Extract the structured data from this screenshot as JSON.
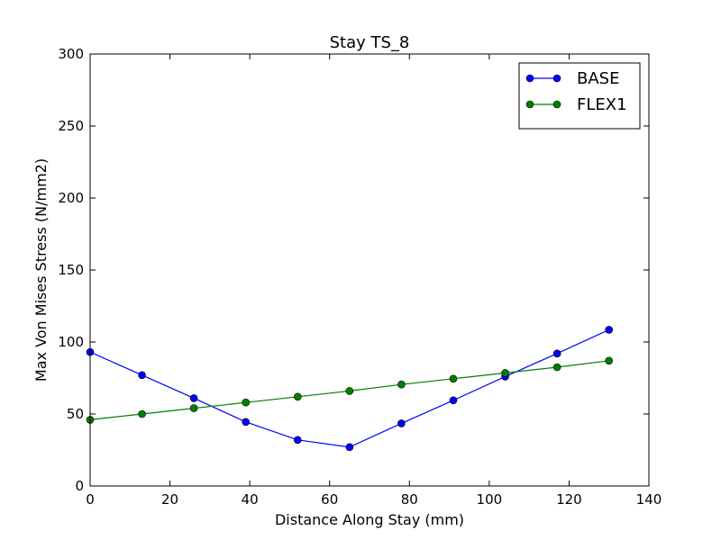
{
  "chart_data": {
    "type": "line",
    "title": "Stay TS_8",
    "xlabel": "Distance Along Stay (mm)",
    "ylabel": "Max Von Mises Stress (N/mm2)",
    "xlim": [
      0,
      140
    ],
    "ylim": [
      0,
      300
    ],
    "xticks": [
      0,
      20,
      40,
      60,
      80,
      100,
      120,
      140
    ],
    "yticks": [
      0,
      50,
      100,
      150,
      200,
      250,
      300
    ],
    "grid": false,
    "legend_position": "top-right",
    "x": [
      0,
      13,
      26,
      39,
      52,
      65,
      78,
      91,
      104,
      117,
      130
    ],
    "series": [
      {
        "name": "BASE",
        "color": "#0000ff",
        "marker": "circle",
        "values": [
          93,
          77,
          61,
          44.5,
          32,
          27,
          43.5,
          59.5,
          76,
          92,
          108.5
        ]
      },
      {
        "name": "FLEX1",
        "color": "#008000",
        "marker": "circle",
        "values": [
          46,
          50,
          54,
          58,
          62,
          66,
          70.5,
          74.5,
          78.5,
          82.5,
          87
        ]
      }
    ]
  }
}
